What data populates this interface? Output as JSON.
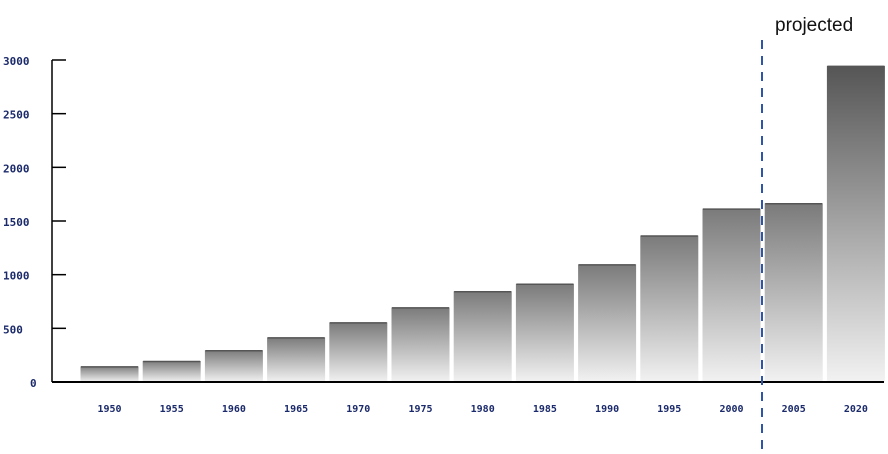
{
  "chart_data": {
    "type": "bar",
    "title": "",
    "xlabel": "",
    "ylabel": "",
    "categories": [
      "1950",
      "1955",
      "1960",
      "1965",
      "1970",
      "1975",
      "1980",
      "1985",
      "1990",
      "1995",
      "2000",
      "2005",
      "2020"
    ],
    "values": [
      150,
      200,
      300,
      420,
      560,
      700,
      850,
      920,
      1100,
      1370,
      1620,
      1670,
      2950
    ],
    "yticks": [
      0,
      500,
      1000,
      1500,
      2000,
      2500,
      3000
    ],
    "ytick_labels": [
      "0",
      "500",
      "1000",
      "1500",
      "2000",
      "2500",
      "3000"
    ],
    "ylim": [
      0,
      3000
    ],
    "grid": false,
    "annotation": "projected",
    "colors": {
      "bar_top": "#7a7a7a",
      "bar_bottom": "#f2f2f2",
      "last_bar_top": "#555555",
      "tick_text": "#1b2a6b",
      "divider": "#2f56a6",
      "axis": "#000000"
    }
  }
}
